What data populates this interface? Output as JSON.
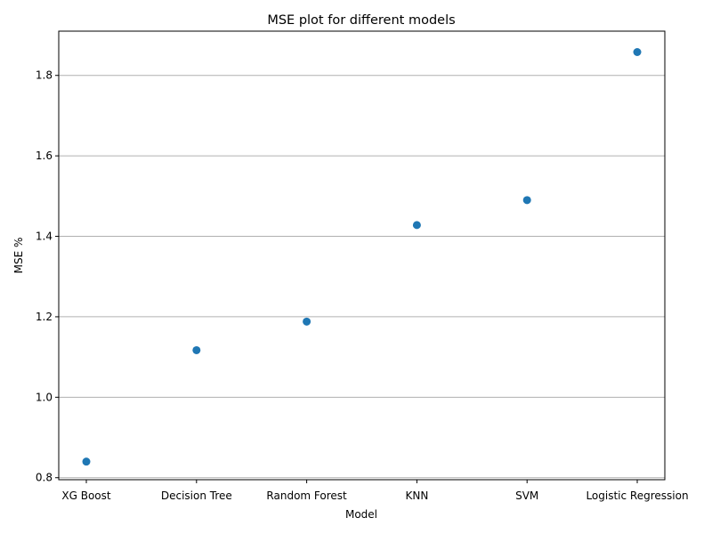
{
  "chart_data": {
    "type": "scatter",
    "title": "MSE plot for different models",
    "xlabel": "Model",
    "ylabel": "MSE %",
    "categories": [
      "XG Boost",
      "Decision Tree",
      "Random Forest",
      "KNN",
      "SVM",
      "Logistic Regression"
    ],
    "values": [
      0.84,
      1.117,
      1.188,
      1.428,
      1.49,
      1.858
    ],
    "ylim": [
      0.795,
      1.91
    ],
    "yticks": [
      "0.8",
      "1.0",
      "1.2",
      "1.4",
      "1.6",
      "1.8"
    ],
    "ytick_values": [
      0.8,
      1.0,
      1.2,
      1.4,
      1.6,
      1.8
    ],
    "grid": "y-axis only",
    "marker_color": "#1f77b4",
    "grid_color": "#b0b0b0"
  }
}
